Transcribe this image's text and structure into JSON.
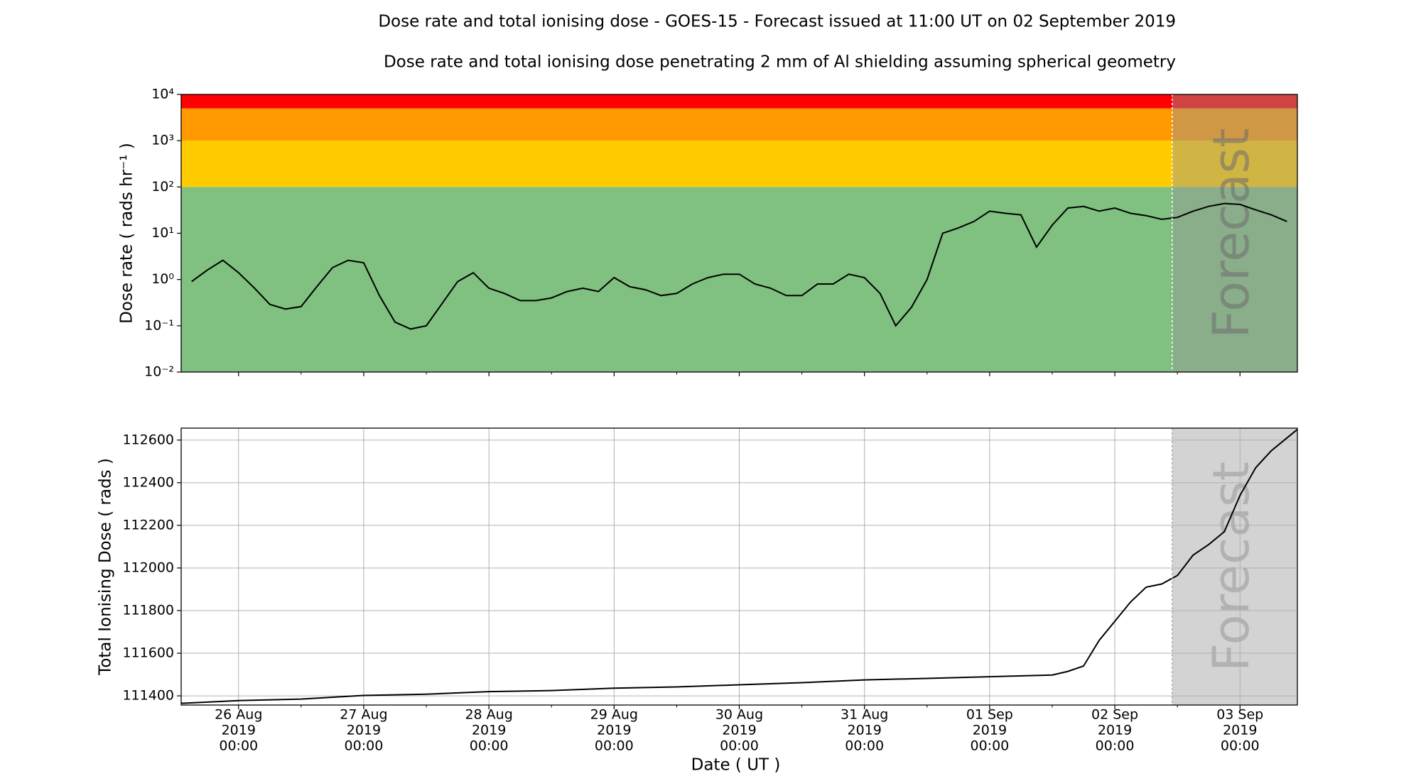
{
  "chart_data": [
    {
      "type": "line",
      "yscale": "log",
      "title": "Dose rate and total ionising dose - GOES-15 - Forecast issued at 11:00 UT on 02 September 2019",
      "subtitle": "Dose rate and total ionising dose penetrating 2 mm of Al shielding assuming spherical geometry",
      "ylabel": "Dose rate ( rads hr⁻¹ )",
      "annotation": "Forecast",
      "forecast_start": "2019-09-02 11:00",
      "color": "#000000",
      "xlim": [
        "2019-08-25 13:00",
        "2019-09-03 11:00"
      ],
      "ylim": [
        0.01,
        10000
      ],
      "yticks": [
        {
          "value": 0.01,
          "label": "10⁻²"
        },
        {
          "value": 0.1,
          "label": "10⁻¹"
        },
        {
          "value": 1,
          "label": "10⁰"
        },
        {
          "value": 10,
          "label": "10¹"
        },
        {
          "value": 100,
          "label": "10²"
        },
        {
          "value": 1000,
          "label": "10³"
        },
        {
          "value": 10000,
          "label": "10⁴"
        }
      ],
      "bands": [
        {
          "from": 0.01,
          "to": 100,
          "color": "#80c080"
        },
        {
          "from": 100,
          "to": 1000,
          "color": "#ffcc00"
        },
        {
          "from": 1000,
          "to": 5000,
          "color": "#ff9900"
        },
        {
          "from": 5000,
          "to": 10000,
          "color": "#ff0000"
        }
      ],
      "x": [
        "2019-08-25 15:00",
        "2019-08-25 18:00",
        "2019-08-25 21:00",
        "2019-08-26 00:00",
        "2019-08-26 03:00",
        "2019-08-26 06:00",
        "2019-08-26 09:00",
        "2019-08-26 12:00",
        "2019-08-26 15:00",
        "2019-08-26 18:00",
        "2019-08-26 21:00",
        "2019-08-27 00:00",
        "2019-08-27 03:00",
        "2019-08-27 06:00",
        "2019-08-27 09:00",
        "2019-08-27 12:00",
        "2019-08-27 15:00",
        "2019-08-27 18:00",
        "2019-08-27 21:00",
        "2019-08-28 00:00",
        "2019-08-28 03:00",
        "2019-08-28 06:00",
        "2019-08-28 09:00",
        "2019-08-28 12:00",
        "2019-08-28 15:00",
        "2019-08-28 18:00",
        "2019-08-28 21:00",
        "2019-08-29 00:00",
        "2019-08-29 03:00",
        "2019-08-29 06:00",
        "2019-08-29 09:00",
        "2019-08-29 12:00",
        "2019-08-29 15:00",
        "2019-08-29 18:00",
        "2019-08-29 21:00",
        "2019-08-30 00:00",
        "2019-08-30 03:00",
        "2019-08-30 06:00",
        "2019-08-30 09:00",
        "2019-08-30 12:00",
        "2019-08-30 15:00",
        "2019-08-30 18:00",
        "2019-08-30 21:00",
        "2019-08-31 00:00",
        "2019-08-31 03:00",
        "2019-08-31 06:00",
        "2019-08-31 09:00",
        "2019-08-31 12:00",
        "2019-08-31 15:00",
        "2019-08-31 18:00",
        "2019-08-31 21:00",
        "2019-09-01 00:00",
        "2019-09-01 03:00",
        "2019-09-01 06:00",
        "2019-09-01 09:00",
        "2019-09-01 12:00",
        "2019-09-01 15:00",
        "2019-09-01 18:00",
        "2019-09-01 21:00",
        "2019-09-02 00:00",
        "2019-09-02 03:00",
        "2019-09-02 06:00",
        "2019-09-02 09:00",
        "2019-09-02 12:00",
        "2019-09-02 15:00",
        "2019-09-02 18:00",
        "2019-09-02 21:00",
        "2019-09-03 00:00",
        "2019-09-03 03:00",
        "2019-09-03 06:00",
        "2019-09-03 09:00"
      ],
      "values": [
        0.9,
        1.6,
        2.6,
        1.4,
        0.66,
        0.29,
        0.23,
        0.26,
        0.7,
        1.8,
        2.6,
        2.3,
        0.45,
        0.12,
        0.085,
        0.1,
        0.3,
        0.9,
        1.4,
        0.65,
        0.5,
        0.35,
        0.35,
        0.4,
        0.55,
        0.65,
        0.55,
        1.1,
        0.7,
        0.6,
        0.45,
        0.5,
        0.8,
        1.1,
        1.3,
        1.3,
        0.8,
        0.65,
        0.45,
        0.45,
        0.8,
        0.8,
        1.3,
        1.1,
        0.5,
        0.1,
        0.25,
        1.0,
        10,
        13,
        18,
        30,
        27,
        25,
        5,
        15,
        35,
        38,
        30,
        35,
        27,
        24,
        20,
        22,
        30,
        38,
        44,
        42,
        32,
        25,
        18
      ]
    },
    {
      "type": "line",
      "grid": true,
      "ylabel": "Total Ionising Dose ( rads )",
      "xlabel": "Date ( UT )",
      "annotation": "Forecast",
      "forecast_start": "2019-09-02 11:00",
      "color": "#000000",
      "xlim": [
        "2019-08-25 13:00",
        "2019-09-03 11:00"
      ],
      "ylim": [
        111357,
        112656
      ],
      "yticks": [
        111400,
        111600,
        111800,
        112000,
        112200,
        112400,
        112600
      ],
      "xticks": [
        {
          "value": "2019-08-26 00:00",
          "label": [
            "26 Aug",
            "2019",
            "00:00"
          ]
        },
        {
          "value": "2019-08-27 00:00",
          "label": [
            "27 Aug",
            "2019",
            "00:00"
          ]
        },
        {
          "value": "2019-08-28 00:00",
          "label": [
            "28 Aug",
            "2019",
            "00:00"
          ]
        },
        {
          "value": "2019-08-29 00:00",
          "label": [
            "29 Aug",
            "2019",
            "00:00"
          ]
        },
        {
          "value": "2019-08-30 00:00",
          "label": [
            "30 Aug",
            "2019",
            "00:00"
          ]
        },
        {
          "value": "2019-08-31 00:00",
          "label": [
            "31 Aug",
            "2019",
            "00:00"
          ]
        },
        {
          "value": "2019-09-01 00:00",
          "label": [
            "01 Sep",
            "2019",
            "00:00"
          ]
        },
        {
          "value": "2019-09-02 00:00",
          "label": [
            "02 Sep",
            "2019",
            "00:00"
          ]
        },
        {
          "value": "2019-09-03 00:00",
          "label": [
            "03 Sep",
            "2019",
            "00:00"
          ]
        }
      ],
      "xminorticks": [
        "2019-08-26 12:00",
        "2019-08-27 12:00",
        "2019-08-28 12:00",
        "2019-08-29 12:00",
        "2019-08-30 12:00",
        "2019-08-31 12:00",
        "2019-09-01 12:00",
        "2019-09-02 12:00"
      ],
      "x": [
        "2019-08-25 13:00",
        "2019-08-26 00:00",
        "2019-08-26 12:00",
        "2019-08-27 00:00",
        "2019-08-27 12:00",
        "2019-08-28 00:00",
        "2019-08-28 12:00",
        "2019-08-29 00:00",
        "2019-08-29 12:00",
        "2019-08-30 00:00",
        "2019-08-30 12:00",
        "2019-08-31 00:00",
        "2019-08-31 12:00",
        "2019-09-01 00:00",
        "2019-09-01 12:00",
        "2019-09-01 15:00",
        "2019-09-01 18:00",
        "2019-09-01 21:00",
        "2019-09-02 00:00",
        "2019-09-02 03:00",
        "2019-09-02 06:00",
        "2019-09-02 09:00",
        "2019-09-02 12:00",
        "2019-09-02 15:00",
        "2019-09-02 18:00",
        "2019-09-02 21:00",
        "2019-09-03 00:00",
        "2019-09-03 03:00",
        "2019-09-03 06:00",
        "2019-09-03 09:00",
        "2019-09-03 11:00"
      ],
      "values": [
        111365,
        111378,
        111385,
        111402,
        111408,
        111420,
        111425,
        111436,
        111442,
        111452,
        111462,
        111475,
        111482,
        111490,
        111498,
        111515,
        111540,
        111660,
        111750,
        111840,
        111910,
        111925,
        111965,
        112060,
        112110,
        112170,
        112340,
        112470,
        112550,
        112610,
        112650
      ]
    }
  ]
}
